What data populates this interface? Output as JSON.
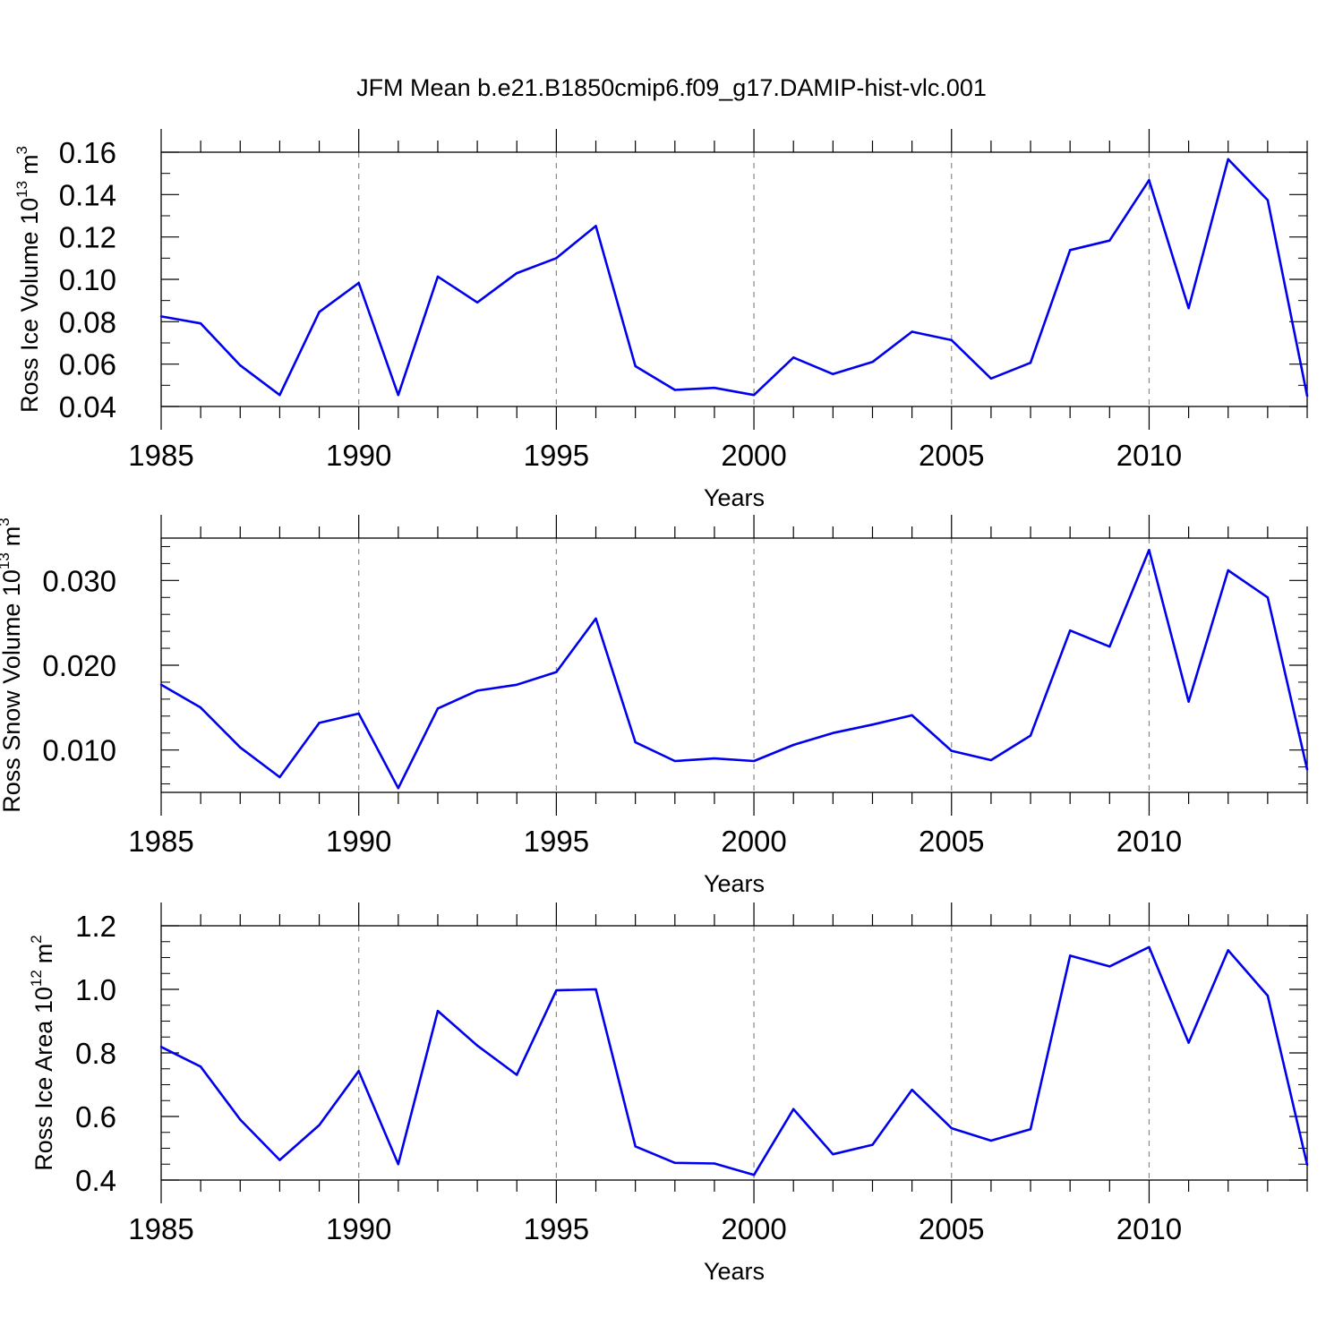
{
  "title": "JFM Mean b.e21.B1850cmip6.f09_g17.DAMIP-hist-vlc.001",
  "colors": {
    "line": "#0000ee",
    "axis": "#000000",
    "grid": "#8a8a8a"
  },
  "chart_data": [
    {
      "type": "line",
      "ylabel": "Ross Ice Volume 10",
      "ylabel_sup": "13",
      "ylabel_unit": "m",
      "ylabel_unit_sup": "3",
      "xlabel": "Years",
      "xlim": [
        1985,
        2014
      ],
      "ylim": [
        0.04,
        0.16
      ],
      "yticks": [
        0.04,
        0.06,
        0.08,
        0.1,
        0.12,
        0.14,
        0.16
      ],
      "ytick_labels": [
        "0.04",
        "0.06",
        "0.08",
        "0.10",
        "0.12",
        "0.14",
        "0.16"
      ],
      "yminor": 0.01,
      "xticks": [
        1985,
        1990,
        1995,
        2000,
        2005,
        2010
      ],
      "xtick_labels": [
        "1985",
        "1990",
        "1995",
        "2000",
        "2005",
        "2010"
      ],
      "x": [
        1985,
        1986,
        1987,
        1988,
        1989,
        1990,
        1991,
        1992,
        1993,
        1994,
        1995,
        1996,
        1997,
        1998,
        1999,
        2000,
        2001,
        2002,
        2003,
        2004,
        2005,
        2006,
        2007,
        2008,
        2009,
        2010,
        2011,
        2012,
        2013,
        2014
      ],
      "series": [
        {
          "name": "Ross Ice Volume",
          "values": [
            0.0825,
            0.0792,
            0.0594,
            0.0454,
            0.0846,
            0.0983,
            0.0454,
            0.1013,
            0.0891,
            0.1029,
            0.11,
            0.1252,
            0.059,
            0.0478,
            0.0488,
            0.0454,
            0.0631,
            0.0553,
            0.061,
            0.0753,
            0.0713,
            0.0532,
            0.0606,
            0.1138,
            0.1183,
            0.1468,
            0.0864,
            0.1567,
            0.1374,
            0.045
          ]
        }
      ]
    },
    {
      "type": "line",
      "ylabel": "Ross Snow Volume 10",
      "ylabel_sup": "13",
      "ylabel_unit": "m",
      "ylabel_unit_sup": "3",
      "xlabel": "Years",
      "xlim": [
        1985,
        2014
      ],
      "ylim": [
        0.005,
        0.035
      ],
      "yticks": [
        0.01,
        0.02,
        0.03
      ],
      "ytick_labels": [
        "0.010",
        "0.020",
        "0.030"
      ],
      "yminor": 0.002,
      "xticks": [
        1985,
        1990,
        1995,
        2000,
        2005,
        2010
      ],
      "xtick_labels": [
        "1985",
        "1990",
        "1995",
        "2000",
        "2005",
        "2010"
      ],
      "x": [
        1985,
        1986,
        1987,
        1988,
        1989,
        1990,
        1991,
        1992,
        1993,
        1994,
        1995,
        1996,
        1997,
        1998,
        1999,
        2000,
        2001,
        2002,
        2003,
        2004,
        2005,
        2006,
        2007,
        2008,
        2009,
        2010,
        2011,
        2012,
        2013,
        2014
      ],
      "series": [
        {
          "name": "Ross Snow Volume",
          "values": [
            0.0177,
            0.015,
            0.0103,
            0.0068,
            0.0132,
            0.0143,
            0.0055,
            0.0149,
            0.017,
            0.0177,
            0.0192,
            0.0255,
            0.0109,
            0.0087,
            0.009,
            0.0087,
            0.0106,
            0.012,
            0.013,
            0.0141,
            0.0099,
            0.0088,
            0.0117,
            0.0241,
            0.0222,
            0.0336,
            0.0157,
            0.0312,
            0.028,
            0.0077
          ]
        }
      ]
    },
    {
      "type": "line",
      "ylabel": "Ross Ice Area 10",
      "ylabel_sup": "12",
      "ylabel_unit": "m",
      "ylabel_unit_sup": "2",
      "xlabel": "Years",
      "xlim": [
        1985,
        2014
      ],
      "ylim": [
        0.4,
        1.2
      ],
      "yticks": [
        0.4,
        0.6,
        0.8,
        1.0,
        1.2
      ],
      "ytick_labels": [
        "0.4",
        "0.6",
        "0.8",
        "1.0",
        "1.2"
      ],
      "yminor": 0.05,
      "xticks": [
        1985,
        1990,
        1995,
        2000,
        2005,
        2010
      ],
      "xtick_labels": [
        "1985",
        "1990",
        "1995",
        "2000",
        "2005",
        "2010"
      ],
      "x": [
        1985,
        1986,
        1987,
        1988,
        1989,
        1990,
        1991,
        1992,
        1993,
        1994,
        1995,
        1996,
        1997,
        1998,
        1999,
        2000,
        2001,
        2002,
        2003,
        2004,
        2005,
        2006,
        2007,
        2008,
        2009,
        2010,
        2011,
        2012,
        2013,
        2014
      ],
      "series": [
        {
          "name": "Ross Ice Area",
          "values": [
            0.819,
            0.757,
            0.59,
            0.463,
            0.573,
            0.743,
            0.45,
            0.932,
            0.823,
            0.731,
            0.997,
            1.0,
            0.506,
            0.454,
            0.452,
            0.416,
            0.623,
            0.481,
            0.511,
            0.684,
            0.563,
            0.524,
            0.56,
            1.106,
            1.072,
            1.133,
            0.832,
            1.123,
            0.98,
            0.448
          ]
        }
      ]
    }
  ]
}
